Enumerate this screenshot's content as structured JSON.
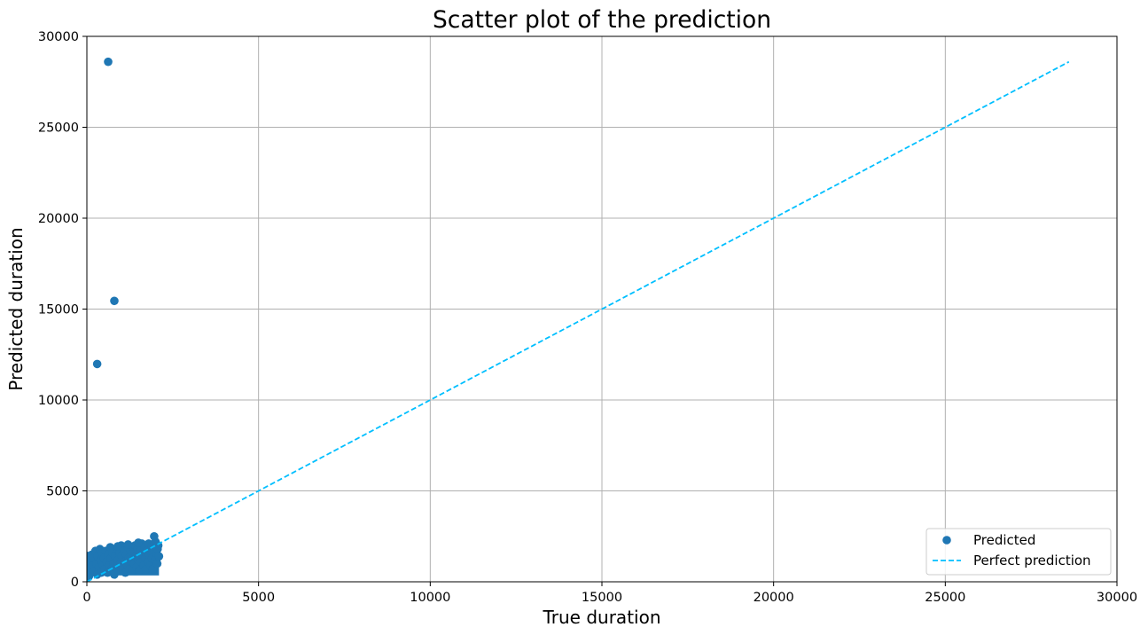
{
  "chart_data": {
    "type": "scatter",
    "title": "Scatter plot of the prediction",
    "xlabel": "True duration",
    "ylabel": "Predicted duration",
    "xlim": [
      0,
      30000
    ],
    "ylim": [
      0,
      30000
    ],
    "xticks": [
      0,
      5000,
      10000,
      15000,
      20000,
      25000,
      30000
    ],
    "yticks": [
      0,
      5000,
      10000,
      15000,
      20000,
      25000,
      30000
    ],
    "grid": true,
    "legend_position": "lower-right",
    "series": [
      {
        "name": "Predicted",
        "kind": "scatter",
        "color": "#1f77b4",
        "points": [
          [
            620,
            28600
          ],
          [
            800,
            15450
          ],
          [
            300,
            11980
          ],
          [
            60,
            300
          ],
          [
            80,
            700
          ],
          [
            100,
            1100
          ],
          [
            120,
            500
          ],
          [
            150,
            1500
          ],
          [
            170,
            900
          ],
          [
            200,
            1300
          ],
          [
            220,
            600
          ],
          [
            250,
            1700
          ],
          [
            280,
            1000
          ],
          [
            300,
            400
          ],
          [
            320,
            1400
          ],
          [
            350,
            800
          ],
          [
            380,
            1800
          ],
          [
            400,
            1200
          ],
          [
            420,
            500
          ],
          [
            450,
            1600
          ],
          [
            480,
            900
          ],
          [
            500,
            1300
          ],
          [
            520,
            700
          ],
          [
            550,
            1700
          ],
          [
            580,
            1100
          ],
          [
            600,
            500
          ],
          [
            620,
            1500
          ],
          [
            650,
            900
          ],
          [
            680,
            1900
          ],
          [
            700,
            1300
          ],
          [
            720,
            700
          ],
          [
            750,
            1600
          ],
          [
            780,
            1000
          ],
          [
            800,
            400
          ],
          [
            820,
            1400
          ],
          [
            850,
            800
          ],
          [
            880,
            1800
          ],
          [
            900,
            1200
          ],
          [
            920,
            600
          ],
          [
            950,
            1600
          ],
          [
            980,
            1000
          ],
          [
            1000,
            2000
          ],
          [
            1020,
            1400
          ],
          [
            1050,
            800
          ],
          [
            1080,
            1700
          ],
          [
            1100,
            1100
          ],
          [
            1120,
            500
          ],
          [
            1150,
            1500
          ],
          [
            1180,
            900
          ],
          [
            1200,
            1900
          ],
          [
            1220,
            1300
          ],
          [
            1250,
            700
          ],
          [
            1280,
            1700
          ],
          [
            1300,
            1100
          ],
          [
            1320,
            600
          ],
          [
            1350,
            1600
          ],
          [
            1380,
            1000
          ],
          [
            1400,
            2000
          ],
          [
            1420,
            1400
          ],
          [
            1450,
            800
          ],
          [
            1480,
            1800
          ],
          [
            1500,
            1200
          ],
          [
            1520,
            600
          ],
          [
            1550,
            1700
          ],
          [
            1580,
            1100
          ],
          [
            1600,
            2100
          ],
          [
            1620,
            1500
          ],
          [
            1650,
            900
          ],
          [
            1680,
            1900
          ],
          [
            1700,
            1300
          ],
          [
            1720,
            700
          ],
          [
            1750,
            1700
          ],
          [
            1780,
            1100
          ],
          [
            1800,
            2100
          ],
          [
            1820,
            1500
          ],
          [
            1850,
            900
          ],
          [
            1880,
            1900
          ],
          [
            1900,
            1300
          ],
          [
            1920,
            700
          ],
          [
            1950,
            1800
          ],
          [
            1980,
            1200
          ],
          [
            2000,
            2200
          ],
          [
            2020,
            1600
          ],
          [
            2050,
            1000
          ],
          [
            2080,
            2000
          ],
          [
            2100,
            1400
          ],
          [
            1960,
            2500
          ],
          [
            1500,
            2150
          ],
          [
            1200,
            2050
          ],
          [
            900,
            1950
          ],
          [
            2060,
            1800
          ]
        ]
      },
      {
        "name": "Perfect prediction",
        "kind": "line",
        "style": "dashed",
        "color": "#00bfff",
        "x": [
          0,
          28600
        ],
        "y": [
          0,
          28600
        ]
      }
    ]
  }
}
